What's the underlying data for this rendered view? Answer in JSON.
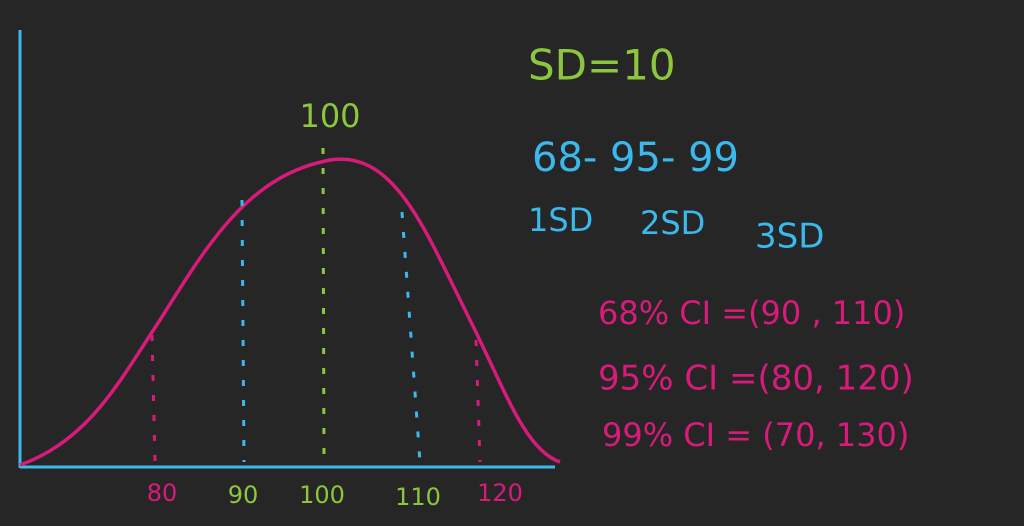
{
  "title": "SD=10",
  "peak_label": "100",
  "rule": {
    "percentages": "68- 95- 99",
    "sd_labels": [
      "1SD",
      "2SD",
      "3SD"
    ]
  },
  "intervals": [
    "68% CI =(90 , 110)",
    "95% CI =(80, 120)",
    "99% CI = (70, 130)"
  ],
  "axis_labels": [
    "80",
    "90",
    "100",
    "110",
    "120"
  ]
}
